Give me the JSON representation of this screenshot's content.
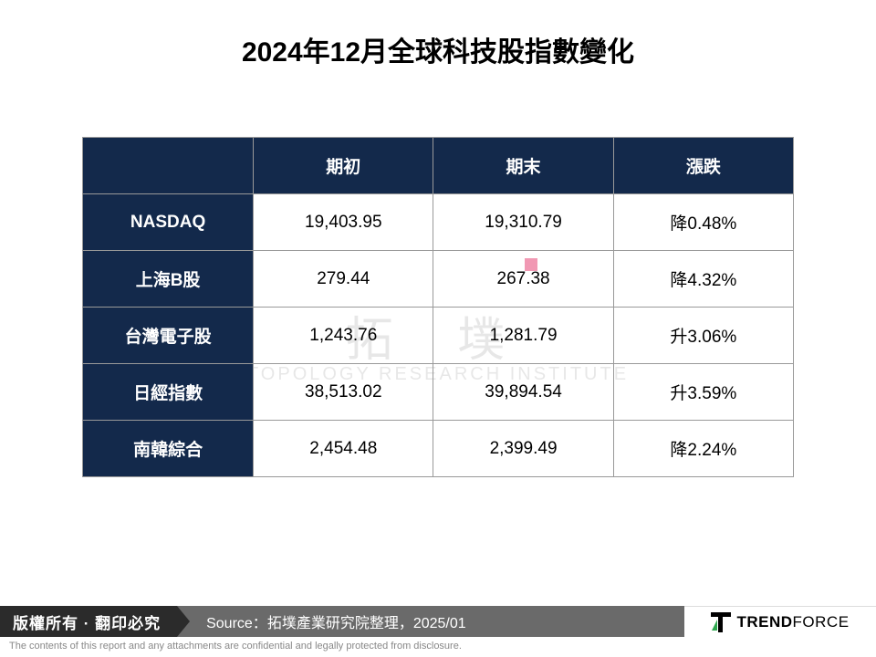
{
  "title": {
    "text": "2024年12月全球科技股指數變化",
    "fontsize": 30
  },
  "table": {
    "header_bg": "#13294b",
    "header_fg": "#ffffff",
    "cell_border": "#999999",
    "cell_fontsize": 19,
    "columns": [
      "",
      "期初",
      "期末",
      "漲跌"
    ],
    "rows": [
      {
        "label": "NASDAQ",
        "start": "19,403.95",
        "end": "19,310.79",
        "change": "降0.48%"
      },
      {
        "label": "上海B股",
        "start": "279.44",
        "end": "267.38",
        "change": "降4.32%"
      },
      {
        "label": "台灣電子股",
        "start": "1,243.76",
        "end": "1,281.79",
        "change": "升3.06%"
      },
      {
        "label": "日經指數",
        "start": "38,513.02",
        "end": "39,894.54",
        "change": "升3.59%"
      },
      {
        "label": "南韓綜合",
        "start": "2,454.48",
        "end": "2,399.49",
        "change": "降2.24%"
      }
    ]
  },
  "watermark": {
    "zh": "拓 墣",
    "en": "TOPOLOGY RESEARCH INSTITUTE"
  },
  "footer": {
    "copyright": "版權所有 · 翻印必究",
    "source_label": "Source：",
    "source_text": "拓墣產業研究院整理，2025/01",
    "logo_text_bold": "TREND",
    "logo_text_rest": "FORCE",
    "disclaimer": "The contents of this report and any attachments are confidential and legally protected from disclosure."
  }
}
